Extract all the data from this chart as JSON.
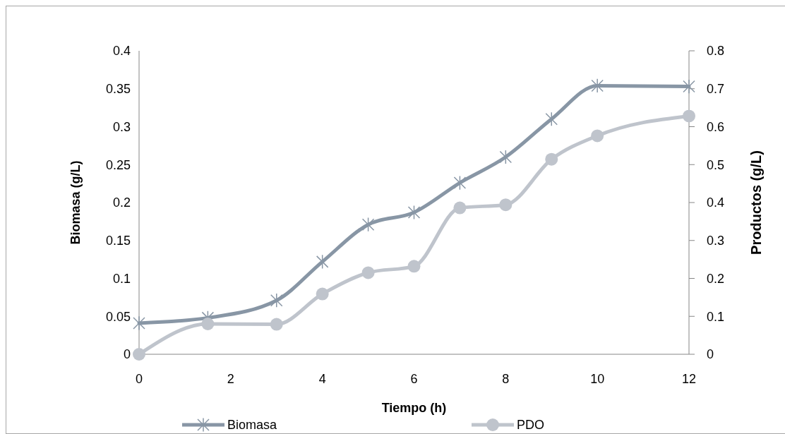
{
  "chart_data": {
    "type": "line",
    "xlabel": "Tiempo (h)",
    "ylabel": "Biomasa (g/L)",
    "y2label": "Productos (g/L)",
    "xlim": [
      0,
      12
    ],
    "xticks": [
      0,
      2,
      4,
      6,
      8,
      10,
      12
    ],
    "ylim": [
      0,
      0.4
    ],
    "yticks": [
      0,
      0.05,
      0.1,
      0.15,
      0.2,
      0.25,
      0.3,
      0.35,
      0.4
    ],
    "y2lim": [
      0,
      0.8
    ],
    "y2ticks": [
      0,
      0.1,
      0.2,
      0.3,
      0.4,
      0.5,
      0.6,
      0.7,
      0.8
    ],
    "legend": "bottom",
    "grid": false,
    "series": [
      {
        "name": "Biomasa",
        "color": "#8896a5",
        "marker": "cross",
        "x": [
          0,
          1.5,
          3,
          4,
          5,
          6,
          7,
          8,
          9,
          10,
          12
        ],
        "values": [
          0.041,
          0.048,
          0.071,
          0.122,
          0.171,
          0.187,
          0.226,
          0.26,
          0.31,
          0.354,
          0.353
        ]
      },
      {
        "name": "PDO",
        "color": "#bfc4cc",
        "marker": "circle",
        "axis": "y2",
        "x": [
          0,
          1.5,
          3,
          4,
          5,
          6,
          7,
          8,
          9,
          10,
          12
        ],
        "values": [
          0,
          0.08,
          0.079,
          0.159,
          0.215,
          0.232,
          0.386,
          0.394,
          0.514,
          0.576,
          0.628
        ]
      }
    ]
  }
}
